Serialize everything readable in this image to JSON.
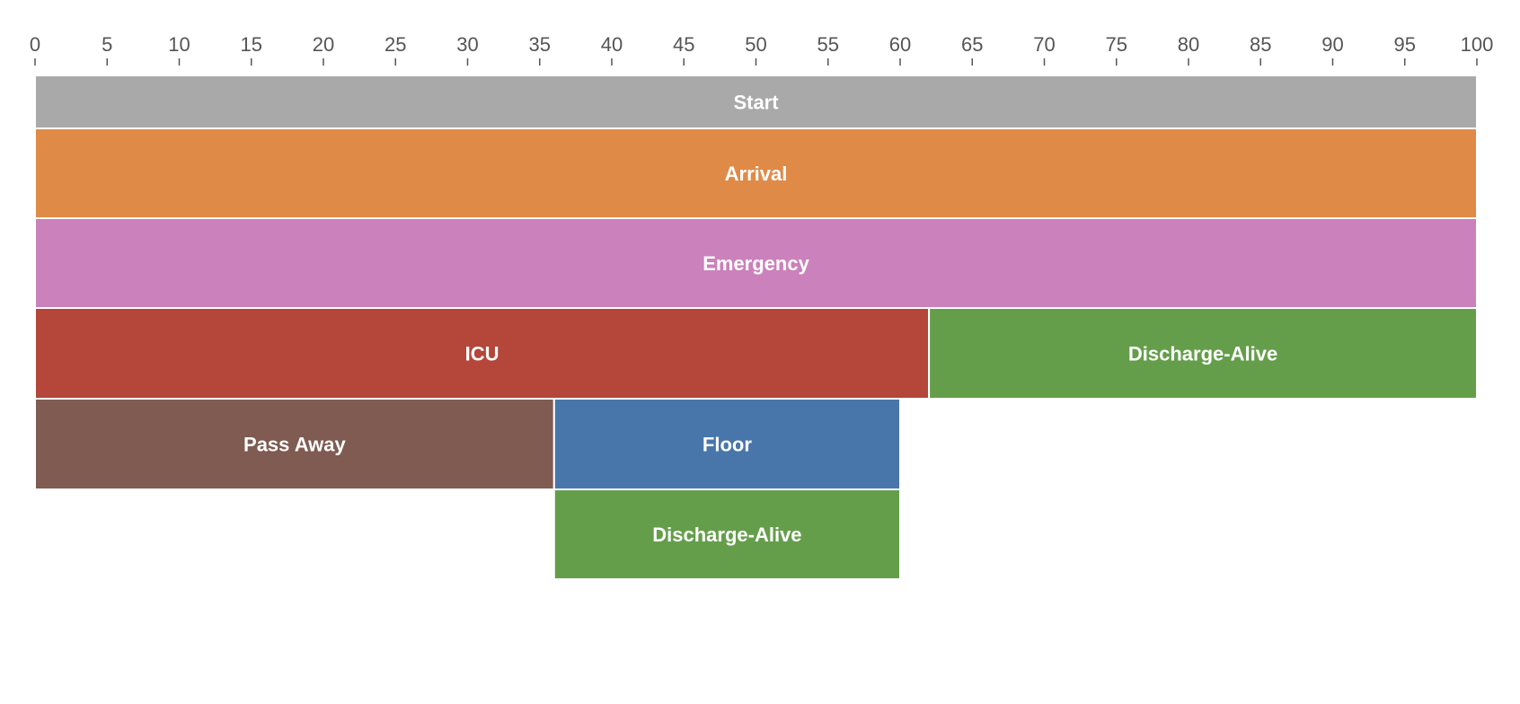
{
  "chart_data": {
    "type": "icicle",
    "xlim": [
      0,
      100
    ],
    "xticks": [
      0,
      5,
      10,
      15,
      20,
      25,
      30,
      35,
      40,
      45,
      50,
      55,
      60,
      65,
      70,
      75,
      80,
      85,
      90,
      95,
      100
    ],
    "xtick_labels": [
      "0",
      "5",
      "10",
      "15",
      "20",
      "25",
      "30",
      "35",
      "40",
      "45",
      "50",
      "55",
      "60",
      "65",
      "70",
      "75",
      "80",
      "85",
      "90",
      "95",
      "100"
    ],
    "levels": [
      [
        {
          "label": "Start",
          "start": 0,
          "end": 100,
          "color": "#a9a9a9"
        }
      ],
      [
        {
          "label": "Arrival",
          "start": 0,
          "end": 100,
          "color": "#e08a47"
        }
      ],
      [
        {
          "label": "Emergency",
          "start": 0,
          "end": 100,
          "color": "#cb81bb"
        }
      ],
      [
        {
          "label": "ICU",
          "start": 0,
          "end": 62,
          "color": "#b4463a"
        },
        {
          "label": "Discharge-Alive",
          "start": 62,
          "end": 100,
          "color": "#659e4b"
        }
      ],
      [
        {
          "label": "Pass Away",
          "start": 0,
          "end": 36,
          "color": "#7f5b52"
        },
        {
          "label": "Floor",
          "start": 36,
          "end": 60,
          "color": "#4876aa"
        }
      ],
      [
        {
          "label": "Discharge-Alive",
          "start": 36,
          "end": 60,
          "color": "#659e4b"
        }
      ]
    ]
  }
}
